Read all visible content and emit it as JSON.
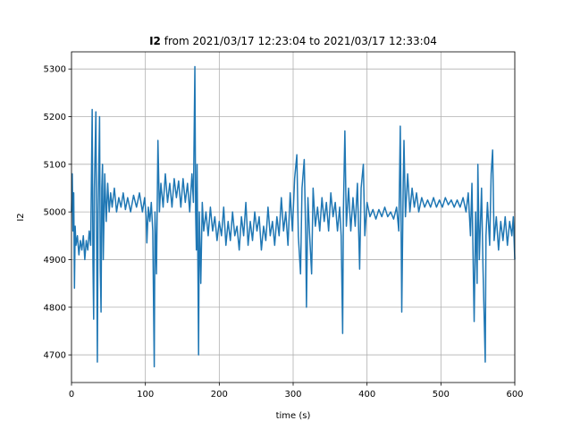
{
  "chart_data": {
    "type": "line",
    "title_var": "I2",
    "title": "from 2021/03/17 12:23:04 to 2021/03/17 12:33:04",
    "xlabel": "time (s)",
    "ylabel": "I2",
    "color": "#1f77b4",
    "grid": true,
    "xlim": [
      0,
      600
    ],
    "ylim": [
      4642,
      5336
    ],
    "xticks": [
      0,
      100,
      200,
      300,
      400,
      500,
      600
    ],
    "yticks": [
      4700,
      4800,
      4900,
      5000,
      5100,
      5200,
      5300
    ],
    "x": [
      0,
      1,
      2,
      3,
      4,
      5,
      6,
      8,
      10,
      12,
      14,
      16,
      18,
      20,
      22,
      24,
      26,
      28,
      29,
      30,
      31,
      33,
      34,
      35,
      36,
      38,
      39,
      40,
      41,
      42,
      43,
      45,
      47,
      49,
      51,
      53,
      55,
      58,
      61,
      64,
      67,
      70,
      73,
      76,
      80,
      84,
      88,
      92,
      96,
      99,
      101,
      102,
      104,
      106,
      108,
      110,
      112,
      113,
      115,
      117,
      119,
      121,
      124,
      127,
      130,
      133,
      136,
      139,
      142,
      145,
      148,
      151,
      154,
      157,
      160,
      163,
      165,
      167,
      168,
      169,
      170,
      172,
      173,
      175,
      177,
      179,
      182,
      185,
      188,
      191,
      194,
      197,
      200,
      203,
      206,
      209,
      212,
      215,
      218,
      221,
      224,
      227,
      230,
      233,
      236,
      239,
      242,
      245,
      248,
      251,
      254,
      257,
      260,
      263,
      266,
      269,
      272,
      275,
      278,
      281,
      284,
      287,
      290,
      293,
      296,
      299,
      302,
      305,
      307,
      310,
      312,
      315,
      317,
      318,
      320,
      322,
      325,
      327,
      330,
      333,
      336,
      339,
      342,
      345,
      348,
      351,
      354,
      357,
      360,
      363,
      365,
      367,
      368,
      370,
      372,
      375,
      378,
      381,
      384,
      387,
      390,
      392,
      395,
      397,
      400,
      404,
      408,
      412,
      416,
      420,
      424,
      428,
      432,
      436,
      440,
      443,
      445,
      446,
      447,
      449,
      450,
      452,
      455,
      458,
      461,
      464,
      467,
      470,
      474,
      478,
      482,
      486,
      490,
      494,
      498,
      502,
      506,
      510,
      514,
      518,
      522,
      526,
      530,
      534,
      537,
      540,
      542,
      544,
      545,
      547,
      549,
      550,
      552,
      555,
      557,
      560,
      561,
      563,
      566,
      568,
      570,
      572,
      575,
      578,
      581,
      584,
      587,
      590,
      593,
      596,
      598,
      600
    ],
    "values": [
      5000,
      5080,
      4960,
      5040,
      4840,
      4970,
      4930,
      4950,
      4910,
      4940,
      4920,
      4950,
      4900,
      4940,
      4920,
      4960,
      4930,
      5215,
      4900,
      4775,
      5050,
      5210,
      4950,
      4685,
      5000,
      5200,
      4880,
      4790,
      5050,
      5100,
      4900,
      5080,
      4980,
      5060,
      5000,
      5040,
      5010,
      5050,
      5000,
      5030,
      5010,
      5040,
      5005,
      5030,
      5000,
      5035,
      5010,
      5040,
      5000,
      5030,
      4990,
      4935,
      5010,
      4980,
      5020,
      4960,
      4675,
      5000,
      4870,
      5150,
      5000,
      5060,
      5010,
      5080,
      5020,
      5060,
      5010,
      5070,
      5030,
      5065,
      5010,
      5070,
      5020,
      5060,
      5000,
      5080,
      5020,
      5305,
      5000,
      4920,
      5100,
      4700,
      5000,
      4850,
      5020,
      4960,
      5000,
      4950,
      5010,
      4960,
      4990,
      4940,
      4980,
      4950,
      5010,
      4930,
      4980,
      4940,
      5000,
      4950,
      4970,
      4920,
      4990,
      4950,
      5020,
      4930,
      4980,
      4940,
      5000,
      4960,
      4990,
      4920,
      4970,
      4940,
      5010,
      4950,
      4980,
      4930,
      4990,
      4950,
      5030,
      4960,
      5000,
      4930,
      5040,
      4960,
      5070,
      5120,
      4950,
      4870,
      5050,
      5110,
      4950,
      4800,
      5030,
      4960,
      4870,
      5050,
      4970,
      5010,
      4960,
      5030,
      4980,
      5020,
      4960,
      5040,
      4990,
      5020,
      4960,
      5010,
      4950,
      4745,
      5000,
      5170,
      4970,
      5050,
      4960,
      5030,
      4970,
      5060,
      4880,
      5050,
      5100,
      4950,
      5020,
      4990,
      5005,
      4985,
      5005,
      4990,
      5010,
      4990,
      5000,
      4985,
      5010,
      4960,
      5180,
      5000,
      4790,
      5060,
      5150,
      4990,
      5080,
      5000,
      5050,
      5010,
      5040,
      5000,
      5030,
      5010,
      5025,
      5010,
      5030,
      5010,
      5025,
      5010,
      5030,
      5015,
      5025,
      5010,
      5025,
      5010,
      5030,
      5000,
      5040,
      4950,
      5060,
      4860,
      4770,
      5000,
      4850,
      5100,
      4900,
      5050,
      4880,
      4685,
      4950,
      5020,
      4930,
      5080,
      5130,
      4940,
      4990,
      4920,
      4980,
      4940,
      4990,
      4930,
      4980,
      4950,
      4990,
      4900
    ]
  }
}
